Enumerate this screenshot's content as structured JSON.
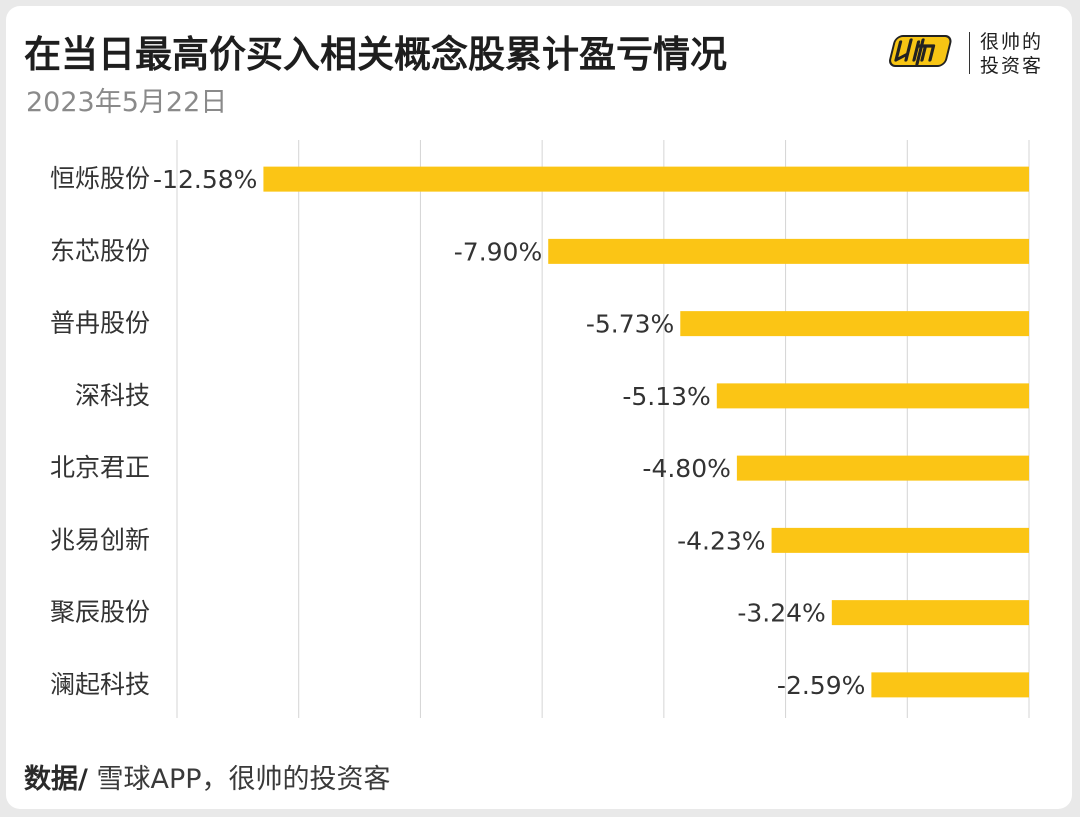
{
  "header": {
    "title": "在当日最高价买入相关概念股累计盈亏情况",
    "subtitle": "2023年5月22日"
  },
  "brand": {
    "line1": "很帅的",
    "line2": "投资客",
    "accent": "#f7c514"
  },
  "footer": {
    "label": "数据/",
    "source": "雪球APP，很帅的投资客"
  },
  "colors": {
    "bar": "#fbc515",
    "grid": "#d4d4d4",
    "text": "#333333"
  },
  "chart_data": {
    "type": "bar",
    "orientation": "horizontal",
    "categories": [
      "恒烁股份",
      "东芯股份",
      "普冉股份",
      "深科技",
      "北京君正",
      "兆易创新",
      "聚辰股份",
      "澜起科技"
    ],
    "values": [
      -12.58,
      -7.9,
      -5.73,
      -5.13,
      -4.8,
      -4.23,
      -3.24,
      -2.59
    ],
    "value_labels": [
      "-12.58%",
      "-7.90%",
      "-5.73%",
      "-5.13%",
      "-4.80%",
      "-4.23%",
      "-3.24%",
      "-2.59%"
    ],
    "xlim": [
      -14,
      0
    ],
    "grid": true,
    "gridlines": [
      -14,
      -12,
      -10,
      -8,
      -6,
      -4,
      -2,
      0
    ]
  }
}
